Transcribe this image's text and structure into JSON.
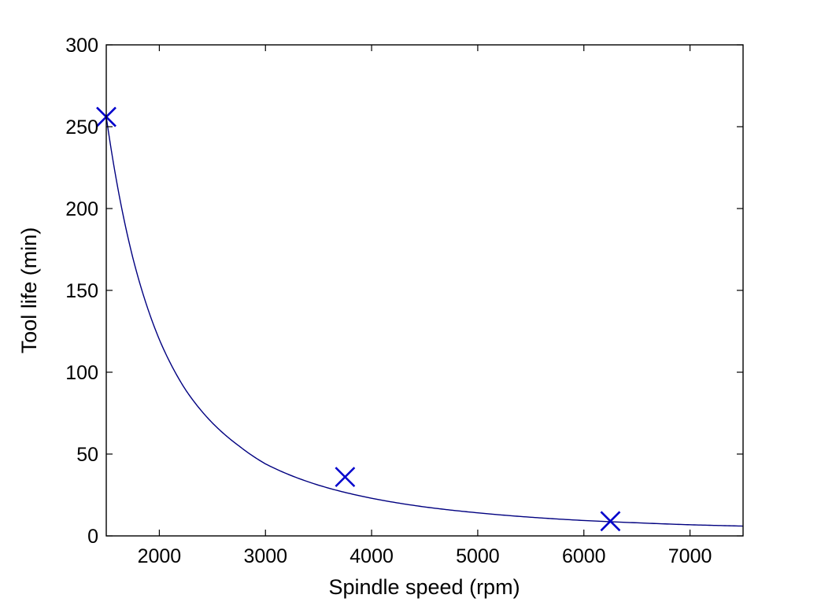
{
  "chart_data": {
    "type": "line",
    "title": "",
    "xlabel": "Spindle speed (rpm)",
    "ylabel": "Tool life (min)",
    "xlim": [
      1500,
      7500
    ],
    "ylim": [
      0,
      300
    ],
    "xticks": [
      2000,
      3000,
      4000,
      5000,
      6000,
      7000
    ],
    "yticks": [
      0,
      50,
      100,
      150,
      200,
      250,
      300
    ],
    "xtick_labels": [
      "2000",
      "3000",
      "4000",
      "5000",
      "6000",
      "7000"
    ],
    "ytick_labels": [
      "0",
      "50",
      "100",
      "150",
      "200",
      "250",
      "300"
    ],
    "grid": false,
    "legend": "none",
    "series": [
      {
        "kind": "measured-points",
        "marker": "x",
        "color": "#0000cc",
        "x": [
          1500,
          3750,
          6250
        ],
        "y": [
          256,
          36,
          9
        ]
      },
      {
        "kind": "fitted-curve",
        "color": "#000080",
        "x": [
          1500,
          1750,
          2000,
          2250,
          2500,
          2750,
          3000,
          3500,
          4000,
          4500,
          5000,
          5500,
          6000,
          6500,
          7000,
          7500
        ],
        "y": [
          256,
          170,
          120,
          89,
          69,
          55,
          44,
          31,
          23,
          17.7,
          14.1,
          11.4,
          9.4,
          8.0,
          6.8,
          6.0
        ]
      }
    ]
  }
}
